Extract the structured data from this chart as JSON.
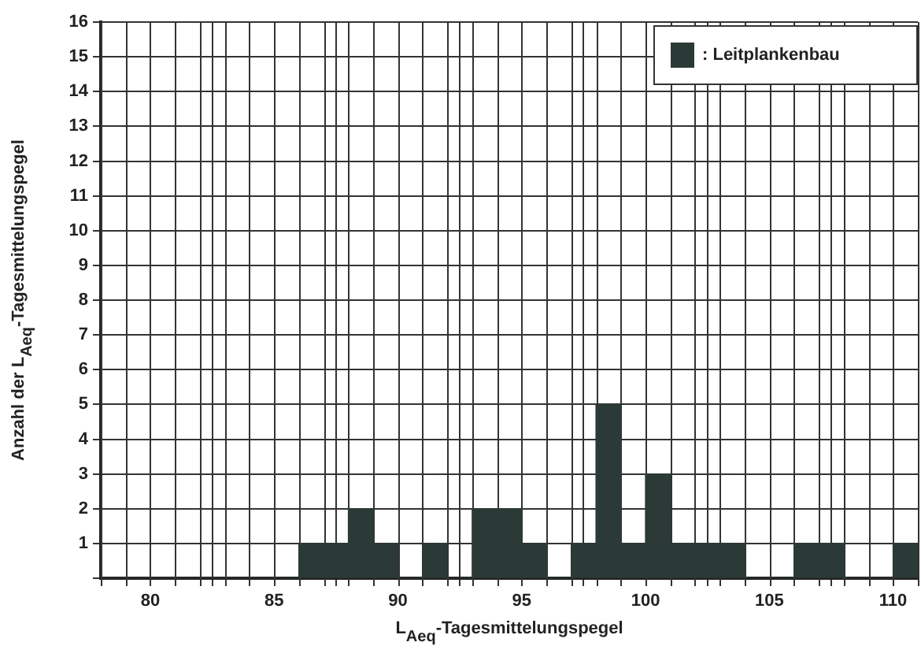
{
  "chart_data": {
    "type": "histogram",
    "xlabel": "L$_{Aeq}$-Tagesmittelungspegel",
    "ylabel": "Anzahl der L$_{Aeq}$-Tagesmittelungspegel",
    "bins": [
      78,
      79,
      80,
      81,
      82,
      83,
      84,
      85,
      86,
      87,
      88,
      89,
      90,
      91,
      92,
      93,
      94,
      95,
      96,
      97,
      98,
      99,
      100,
      101,
      102,
      103,
      104,
      105,
      106,
      107,
      108,
      109,
      110,
      111
    ],
    "series": [
      {
        "name": ": Leitplankenbau",
        "color": "#2b3a36",
        "values": [
          0,
          0,
          0,
          0,
          0,
          0,
          0,
          0,
          1,
          1,
          2,
          1,
          0,
          1,
          0,
          2,
          2,
          1,
          0,
          1,
          5,
          1,
          3,
          1,
          1,
          1,
          0,
          0,
          1,
          1,
          0,
          0,
          1
        ]
      }
    ],
    "xlim": [
      78,
      111
    ],
    "xticks": [
      80,
      85,
      90,
      95,
      100,
      105,
      110
    ],
    "ylim": [
      0,
      16
    ],
    "yticks": [
      {
        "value": 0,
        "label": null
      },
      1,
      2,
      3,
      4,
      5,
      6,
      7,
      8,
      9,
      10,
      11,
      12,
      13,
      14,
      15,
      16
    ],
    "grid": true,
    "legend": "top right"
  }
}
